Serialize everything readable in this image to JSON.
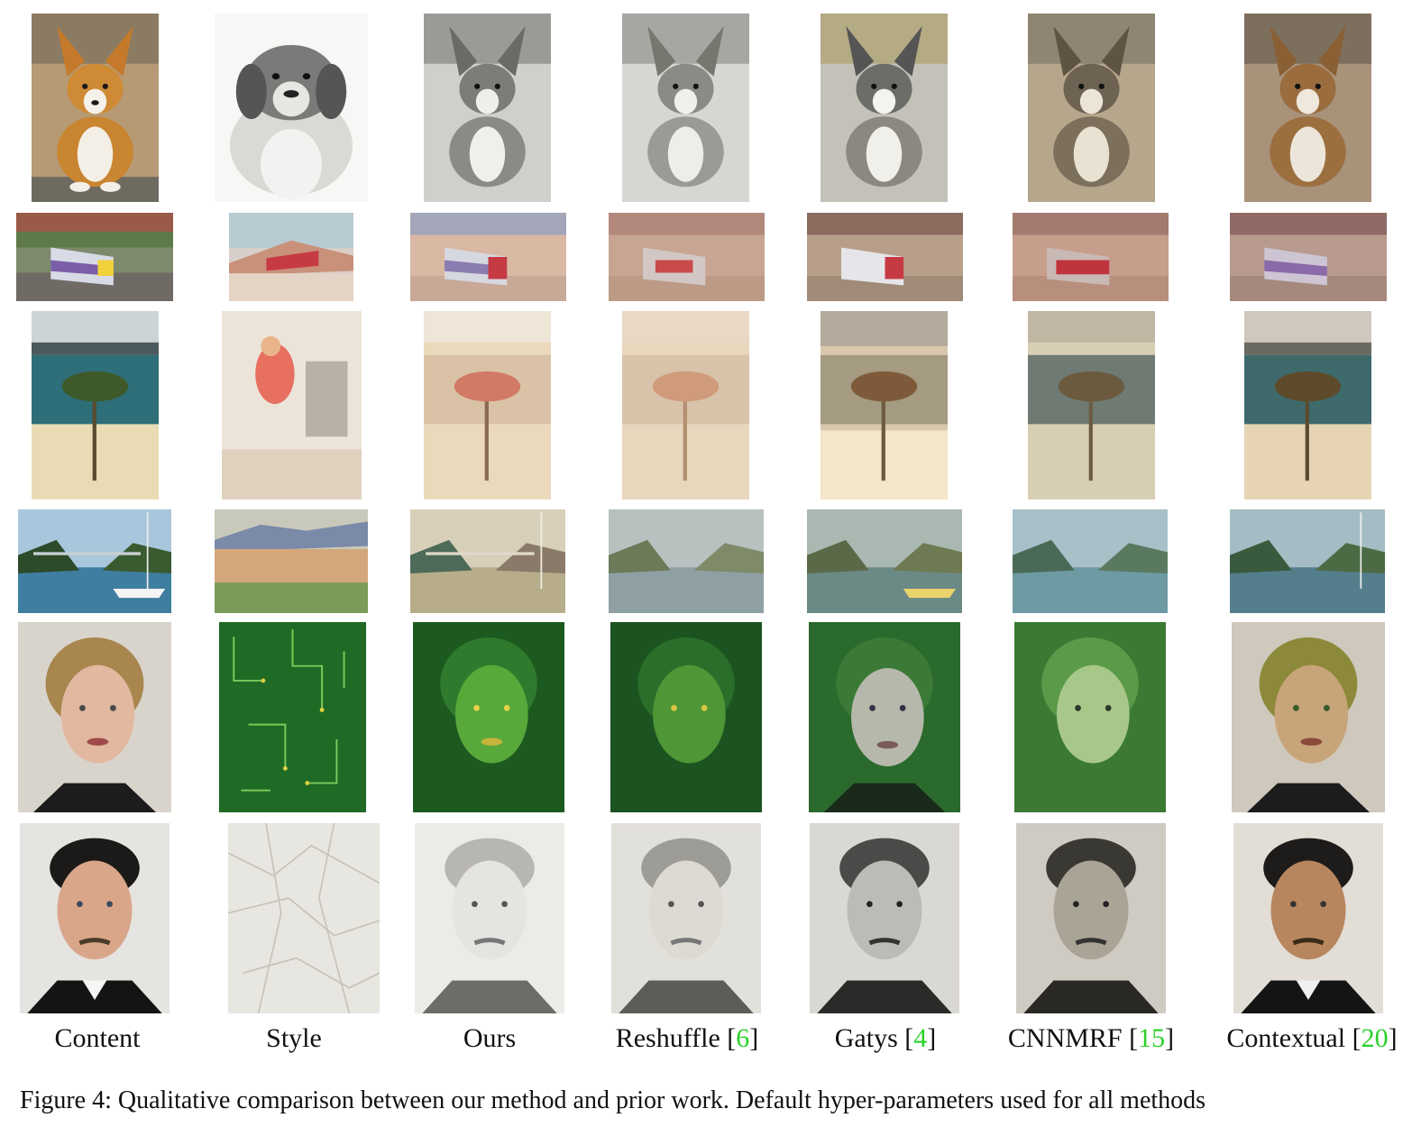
{
  "columns": [
    {
      "label": "Content",
      "ref": ""
    },
    {
      "label": "Style",
      "ref": ""
    },
    {
      "label": "Ours",
      "ref": ""
    },
    {
      "label": "Reshuffle",
      "ref": "6"
    },
    {
      "label": "Gatys",
      "ref": "4"
    },
    {
      "label": "CNNMRF",
      "ref": "15"
    },
    {
      "label": "Contextual",
      "ref": "20"
    }
  ],
  "rows": [
    "corgi",
    "train",
    "palm-beach",
    "bridge-sailboat",
    "woman-portrait",
    "man-portrait"
  ],
  "caption": "Figure 4: Qualitative comparison between our method and prior work. Default hyper-parameters used for all methods",
  "colors": {
    "reference_link": "#2ad12a",
    "text": "#111111"
  }
}
